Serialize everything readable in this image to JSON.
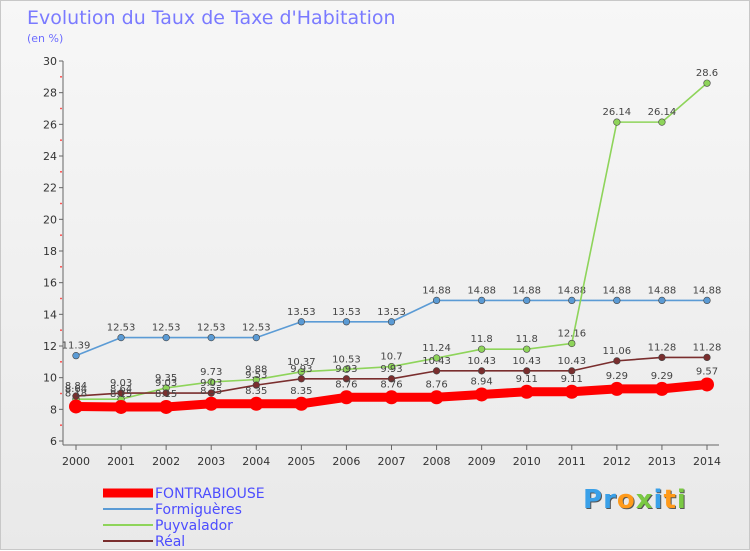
{
  "title": "Evolution du Taux de Taxe d'Habitation",
  "subtitle": "(en %)",
  "logo": {
    "text": "Proxiti",
    "letters": [
      {
        "ch": "P",
        "color": "#3aa0e8"
      },
      {
        "ch": "r",
        "color": "#3aa0e8"
      },
      {
        "ch": "o",
        "color": "#ff9a1a"
      },
      {
        "ch": "x",
        "color": "#7ac943"
      },
      {
        "ch": "i",
        "color": "#3aa0e8"
      },
      {
        "ch": "t",
        "color": "#ff9a1a"
      },
      {
        "ch": "i",
        "color": "#7ac943"
      }
    ]
  },
  "chart_data": {
    "type": "line",
    "title": "Evolution du Taux de Taxe d'Habitation",
    "ylabel": "(en %)",
    "xlabel": "",
    "ylim": [
      6,
      30
    ],
    "yticks": [
      6,
      8,
      10,
      12,
      14,
      16,
      18,
      20,
      22,
      24,
      26,
      28,
      30
    ],
    "x": [
      "2000",
      "2001",
      "2002",
      "2003",
      "2004",
      "2005",
      "2006",
      "2007",
      "2008",
      "2009",
      "2010",
      "2011",
      "2012",
      "2013",
      "2014"
    ],
    "grid": false,
    "legend": "bottom-left",
    "series": [
      {
        "name": "FONTRABIOUSE",
        "color": "#ff0000",
        "values": [
          8.18,
          8.15,
          8.15,
          8.35,
          8.35,
          8.35,
          8.76,
          8.76,
          8.76,
          8.94,
          9.11,
          9.11,
          9.29,
          9.29,
          9.57
        ],
        "labels": [
          "8.18",
          "8.15",
          "8.15",
          "8.35",
          "8.35",
          "8.35",
          "8.76",
          "8.76",
          "8.76",
          "8.94",
          "9.11",
          "9.11",
          "9.29",
          "9.29",
          "9.57"
        ]
      },
      {
        "name": "Formiguères",
        "color": "#5b9bd5",
        "values": [
          11.39,
          12.53,
          12.53,
          12.53,
          12.53,
          13.53,
          13.53,
          13.53,
          14.88,
          14.88,
          14.88,
          14.88,
          14.88,
          14.88,
          14.88
        ],
        "labels": [
          "11.39",
          "12.53",
          "12.53",
          "12.53",
          "12.53",
          "13.53",
          "13.53",
          "13.53",
          "14.88",
          "14.88",
          "14.88",
          "14.88",
          "14.88",
          "14.88",
          "14.88"
        ]
      },
      {
        "name": "Puyvalador",
        "color": "#8ed45a",
        "values": [
          8.64,
          8.64,
          9.35,
          9.73,
          9.88,
          10.37,
          10.53,
          10.7,
          11.24,
          11.8,
          11.8,
          12.16,
          26.14,
          26.14,
          28.6
        ],
        "labels": [
          "8.64",
          "8.64",
          "9.35",
          "9.73",
          "9.88",
          "10.37",
          "10.53",
          "10.7",
          "11.24",
          "11.8",
          "11.8",
          "12.16",
          "26.14",
          "26.14",
          "28.6"
        ]
      },
      {
        "name": "Réal",
        "color": "#7a2e2e",
        "values": [
          8.84,
          9.03,
          9.03,
          9.03,
          9.53,
          9.93,
          9.93,
          9.93,
          10.43,
          10.43,
          10.43,
          10.43,
          11.06,
          11.28,
          11.28
        ],
        "labels": [
          "8.84",
          "9.03",
          "9.03",
          "9.03",
          "9.53",
          "9.93",
          "9.93",
          "9.93",
          "10.43",
          "10.43",
          "10.43",
          "10.43",
          "11.06",
          "11.28",
          "11.28"
        ]
      }
    ]
  }
}
